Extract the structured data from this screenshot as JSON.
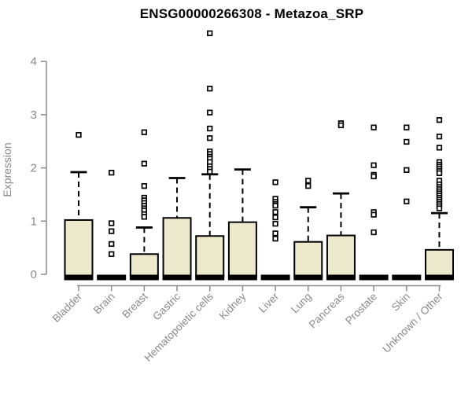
{
  "chart_data": {
    "type": "boxplot",
    "title": "ENSG00000266308 - Metazoa_SRP",
    "ylabel": "Expression",
    "xlabel": "",
    "ylim": [
      0,
      4.6
    ],
    "yticks": [
      0,
      1,
      2,
      3,
      4
    ],
    "grid": false,
    "legend": "none",
    "categories": [
      "Bladder",
      "Brain",
      "Breast",
      "Gastric",
      "Hematopoietic cells",
      "Kidney",
      "Liver",
      "Lung",
      "Pancreas",
      "Prostate",
      "Skin",
      "Unknown / Other"
    ],
    "series": [
      {
        "category": "Bladder",
        "q1": 0,
        "median": 0,
        "q3": 1.02,
        "whisker_low": 0,
        "whisker_high": 1.92,
        "outliers": [
          2.62
        ]
      },
      {
        "category": "Brain",
        "q1": 0,
        "median": 0,
        "q3": 0,
        "whisker_low": 0,
        "whisker_high": 0,
        "outliers": [
          1.91,
          0.96,
          0.81,
          0.57,
          0.38
        ]
      },
      {
        "category": "Breast",
        "q1": 0,
        "median": 0,
        "q3": 0.38,
        "whisker_low": 0,
        "whisker_high": 0.88,
        "outliers": [
          2.67,
          2.08,
          1.66,
          1.44,
          1.39,
          1.34,
          1.29,
          1.24,
          1.2,
          1.13,
          1.08
        ]
      },
      {
        "category": "Gastric",
        "q1": 0,
        "median": 0,
        "q3": 1.06,
        "whisker_low": 0,
        "whisker_high": 1.81,
        "outliers": []
      },
      {
        "category": "Hematopoietic cells",
        "q1": 0,
        "median": 0,
        "q3": 0.72,
        "whisker_low": 0,
        "whisker_high": 1.88,
        "outliers": [
          4.53,
          3.49,
          3.04,
          2.74,
          2.56,
          2.31,
          2.26,
          2.21,
          2.17,
          2.11,
          2.03,
          1.98,
          1.93
        ]
      },
      {
        "category": "Kidney",
        "q1": 0,
        "median": 0,
        "q3": 0.98,
        "whisker_low": 0,
        "whisker_high": 1.97,
        "outliers": []
      },
      {
        "category": "Liver",
        "q1": 0,
        "median": 0,
        "q3": 0,
        "whisker_low": 0,
        "whisker_high": 0,
        "outliers": [
          1.73,
          1.42,
          1.36,
          1.32,
          1.29,
          1.17,
          1.07,
          0.95,
          0.77,
          0.67
        ]
      },
      {
        "category": "Lung",
        "q1": 0,
        "median": 0,
        "q3": 0.61,
        "whisker_low": 0,
        "whisker_high": 1.26,
        "outliers": [
          1.76,
          1.66
        ]
      },
      {
        "category": "Pancreas",
        "q1": 0,
        "median": 0,
        "q3": 0.73,
        "whisker_low": 0,
        "whisker_high": 1.52,
        "outliers": [
          2.84,
          2.8
        ]
      },
      {
        "category": "Prostate",
        "q1": 0,
        "median": 0,
        "q3": 0,
        "whisker_low": 0,
        "whisker_high": 0,
        "outliers": [
          2.76,
          2.05,
          1.87,
          1.84,
          1.17,
          1.12,
          0.79
        ]
      },
      {
        "category": "Skin",
        "q1": 0,
        "median": 0,
        "q3": 0,
        "whisker_low": 0,
        "whisker_high": 0,
        "outliers": [
          2.76,
          2.49,
          1.96,
          1.37
        ]
      },
      {
        "category": "Unknown / Other",
        "q1": 0,
        "median": 0,
        "q3": 0.46,
        "whisker_low": 0,
        "whisker_high": 1.15,
        "outliers": [
          2.9,
          2.59,
          2.38,
          2.11,
          2.06,
          2.02,
          1.98,
          1.94,
          1.9,
          1.76,
          1.69,
          1.64,
          1.6,
          1.56,
          1.52,
          1.48,
          1.44,
          1.4,
          1.36,
          1.32,
          1.28,
          1.24
        ]
      }
    ],
    "colors": {
      "box_fill": "#EDE9CC",
      "box_stroke": "#000000",
      "median": "#000000",
      "whisker": "#000000",
      "outlier_fill": "#ffffff",
      "outlier_stroke": "#000000",
      "axis": "#8a8a8a",
      "tick_label": "#8a8a8a",
      "title": "#000000",
      "background": "#ffffff"
    }
  }
}
